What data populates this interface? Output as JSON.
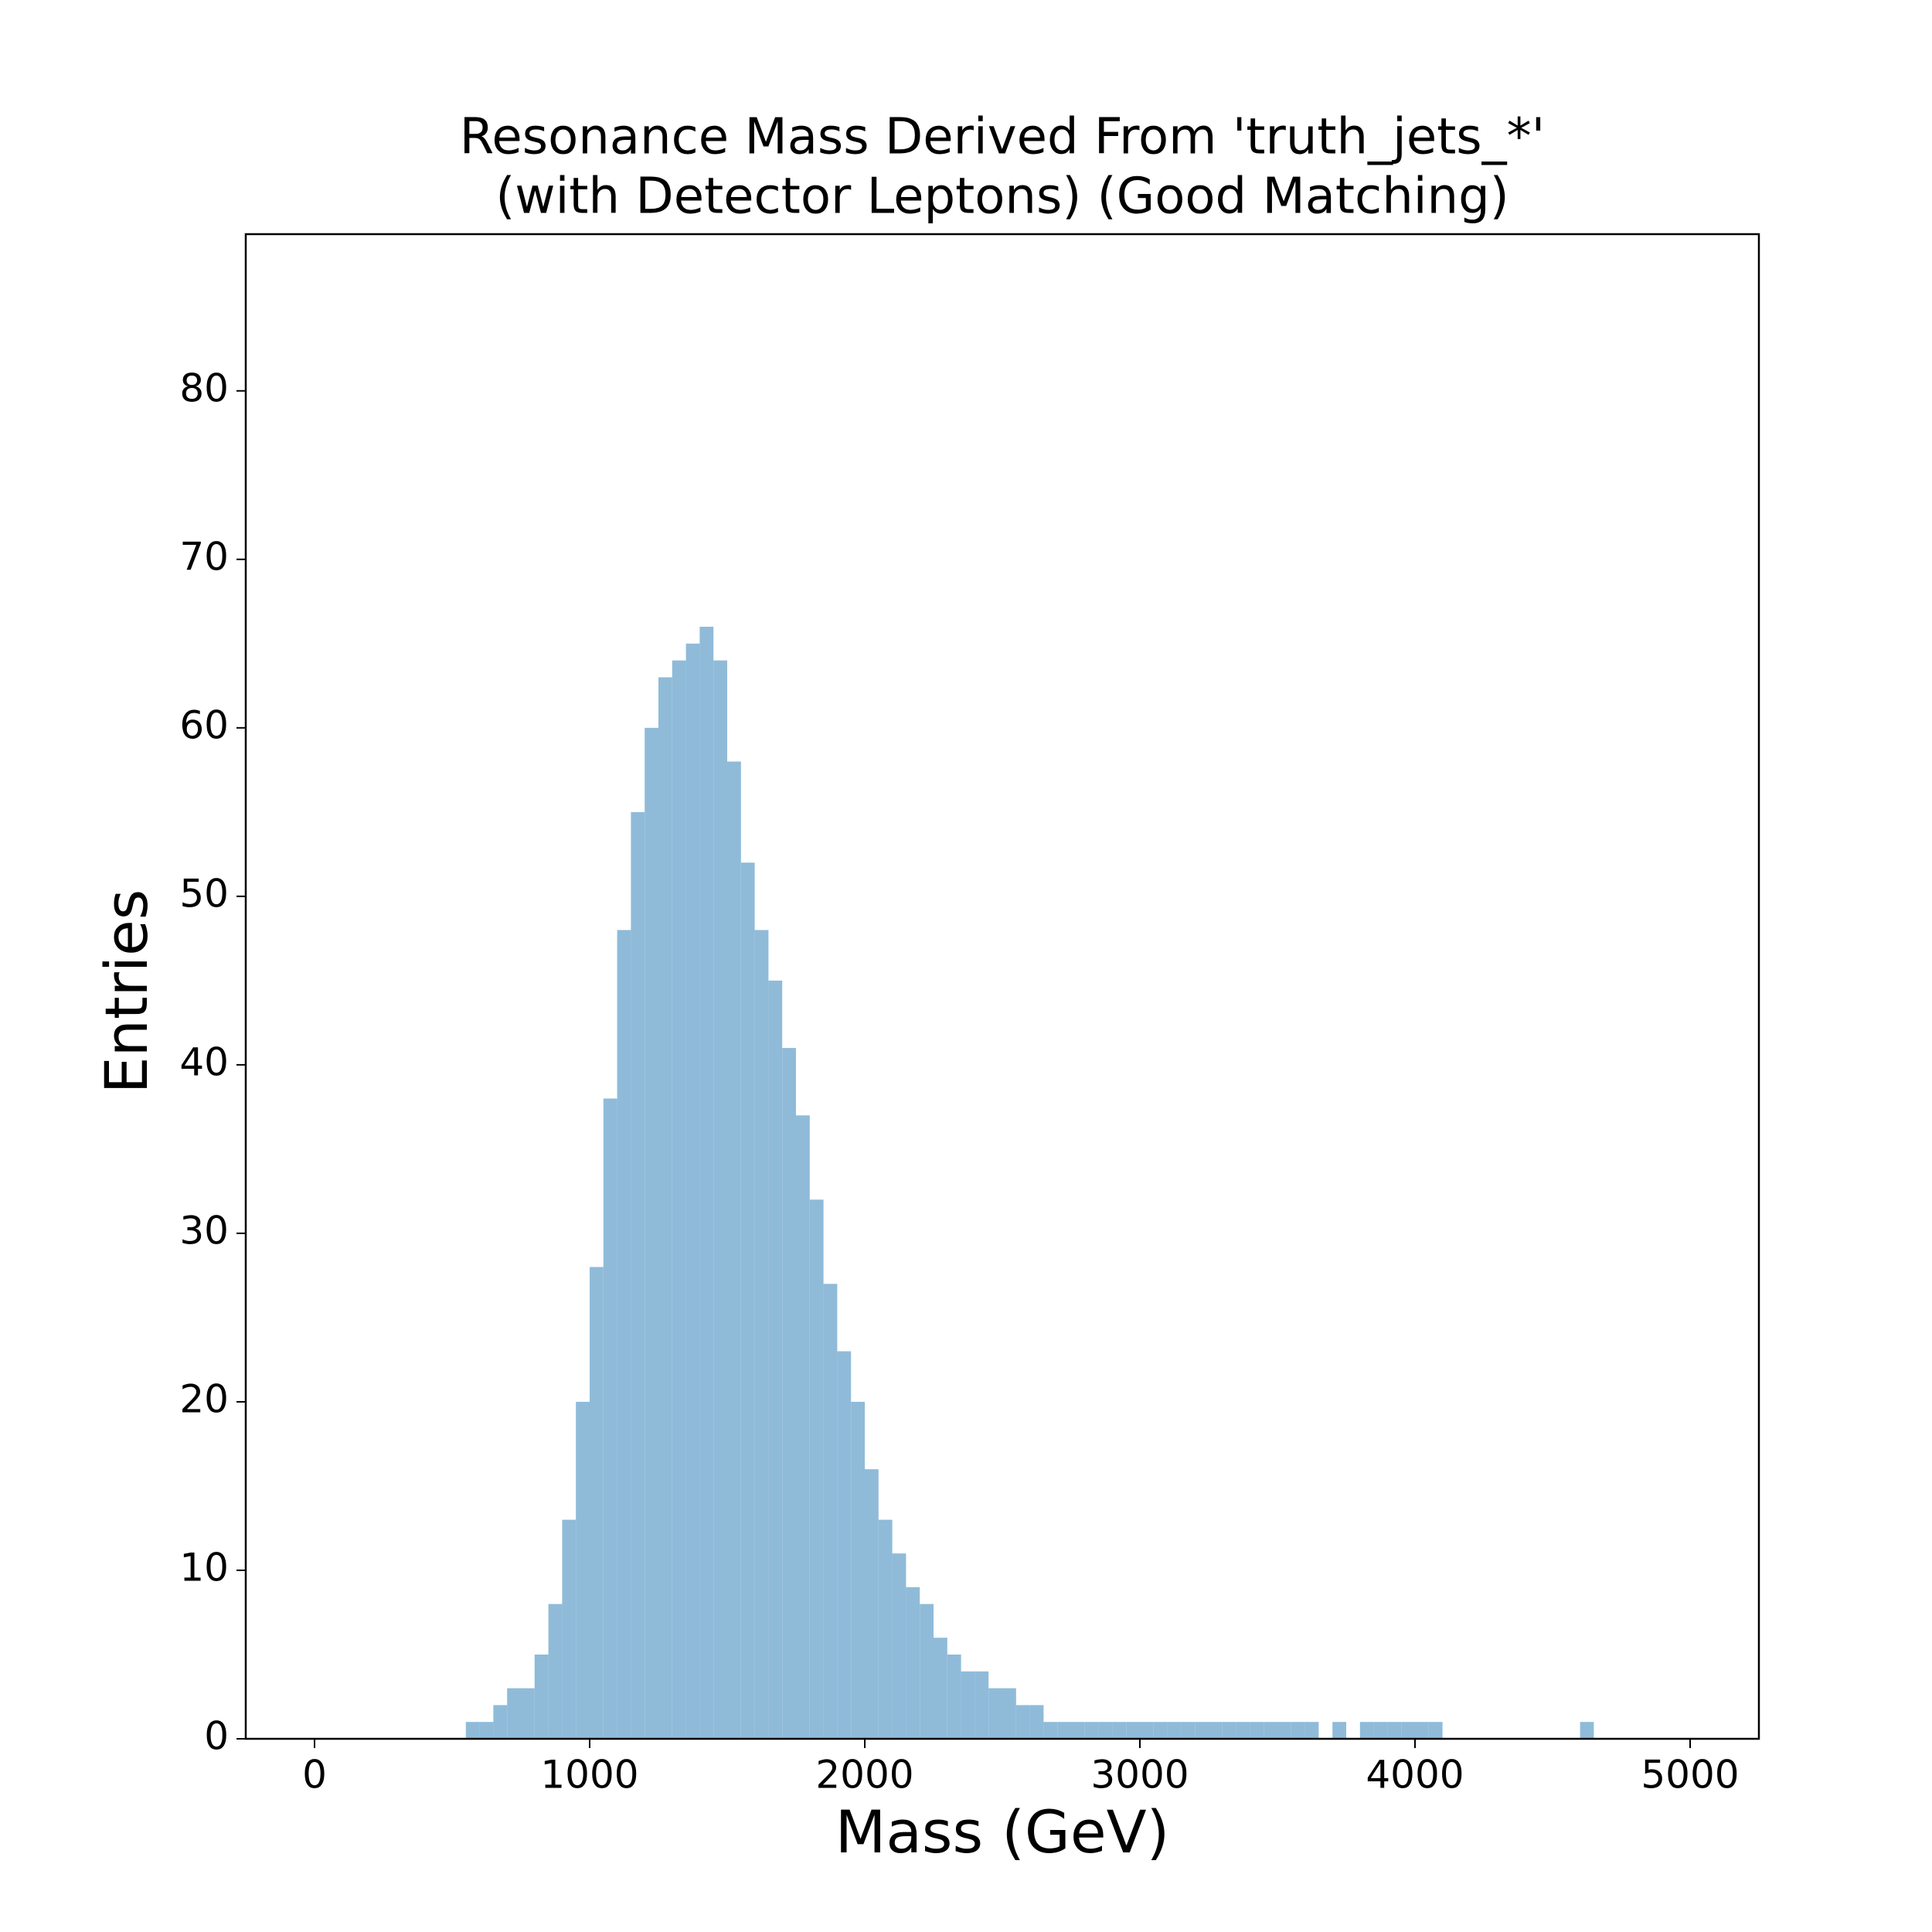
{
  "chart_data": {
    "type": "histogram",
    "title": [
      "Resonance Mass Derived From 'truth_jets_*'",
      "(with Detector Leptons) (Good Matching)"
    ],
    "x_label": "Mass (GeV)",
    "y_label": "Entries",
    "color": "#8fbbd9",
    "bins": [
      550,
      600,
      650,
      700,
      750,
      800,
      850,
      900,
      950,
      1000,
      1050,
      1100,
      1150,
      1200,
      1250,
      1300,
      1350,
      1400,
      1450,
      1500,
      1550,
      1600,
      1650,
      1700,
      1750,
      1800,
      1850,
      1900,
      1950,
      2000,
      2050,
      2100,
      2150,
      2200,
      2250,
      2300,
      2350,
      2400,
      2450,
      2500,
      2550,
      2600,
      2650,
      2700,
      2750,
      2800,
      2850,
      2900,
      2950,
      3000,
      3050,
      3100,
      3150,
      3200,
      3250,
      3300,
      3350,
      3400,
      3450,
      3500,
      3550,
      3600,
      3650,
      3700,
      3750,
      3800,
      3850,
      3900,
      3950,
      4000,
      4050,
      4100,
      4150,
      4200,
      4250,
      4300,
      4350,
      4400,
      4450,
      4500,
      4550,
      4600,
      4650
    ],
    "values": [
      1,
      1,
      2,
      3,
      3,
      5,
      8,
      13,
      20,
      28,
      38,
      48,
      55,
      60,
      63,
      64,
      65,
      66,
      64,
      58,
      52,
      48,
      45,
      41,
      37,
      32,
      27,
      23,
      20,
      16,
      13,
      11,
      9,
      8,
      6,
      5,
      4,
      4,
      3,
      3,
      2,
      2,
      1,
      1,
      1,
      1,
      1,
      1,
      1,
      1,
      1,
      1,
      1,
      1,
      1,
      1,
      1,
      1,
      1,
      1,
      1,
      1,
      0,
      1,
      0,
      1,
      1,
      1,
      1,
      1,
      1,
      0,
      0,
      0,
      0,
      0,
      0,
      0,
      0,
      0,
      0,
      1
    ],
    "xlim": [
      -250,
      5250
    ],
    "ylim": [
      0,
      89.3
    ],
    "xticks": [
      0,
      1000,
      2000,
      3000,
      4000,
      5000
    ],
    "yticks": [
      0,
      10,
      20,
      30,
      40,
      50,
      60,
      70,
      80
    ],
    "grid": false
  }
}
